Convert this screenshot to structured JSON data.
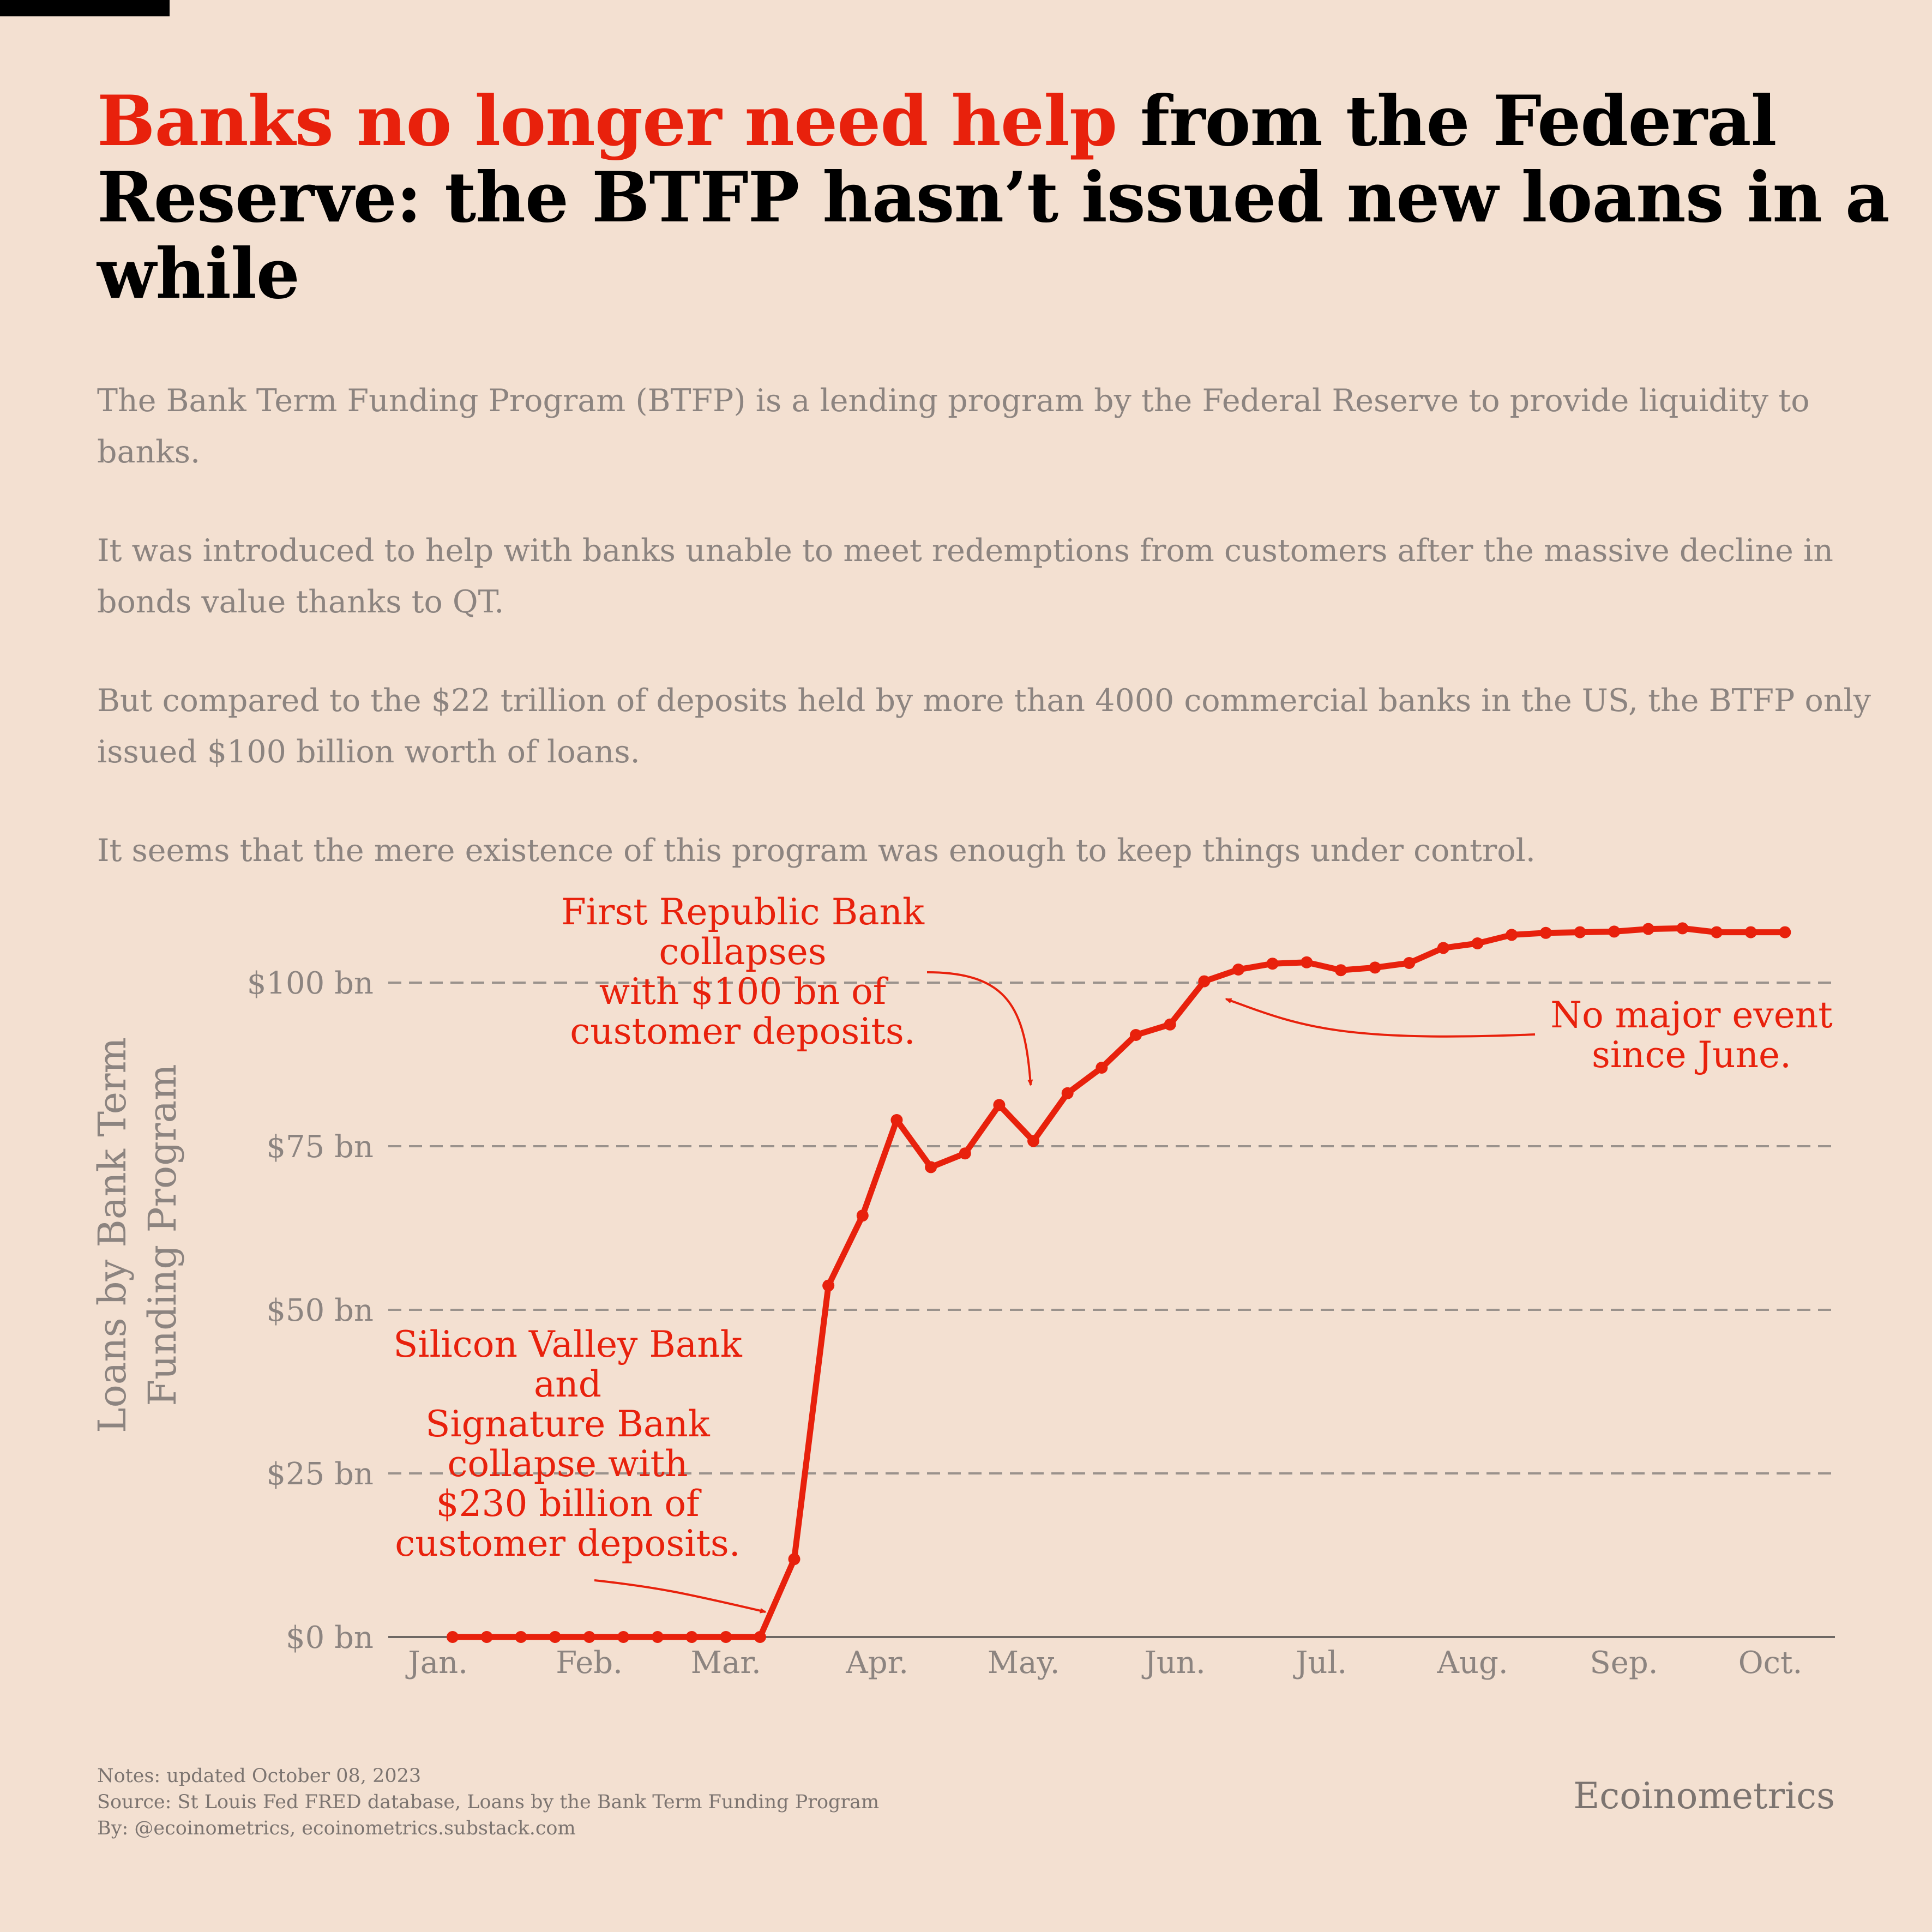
{
  "header": {
    "title_accent": "Banks no longer need help",
    "title_rest": " from the Federal Reserve: the BTFP hasn’t issued new loans in a while",
    "paragraphs": [
      "The Bank Term Funding Program (BTFP) is a lending program by the Federal Reserve to provide liquidity to banks.",
      "It was introduced to help with banks unable to meet redemptions from customers after the massive decline in bonds value thanks to QT.",
      "But compared to the $22 trillion of deposits held by more than 4000 commercial banks in the US, the BTFP only issued $100 billion worth of loans.",
      "It seems that the mere existence of this program was enough to keep things under control."
    ]
  },
  "chart_data": {
    "type": "line",
    "ylabel": "Loans by Bank Term Funding Program",
    "ylim": [
      0,
      110
    ],
    "yticks": [
      0,
      25,
      50,
      75,
      100
    ],
    "ytick_labels": [
      "$0 bn",
      "$25 bn",
      "$50 bn",
      "$75 bn",
      "$100 bn"
    ],
    "xtick_labels": [
      "Jan.",
      "Feb.",
      "Mar.",
      "Apr.",
      "May.",
      "Jun.",
      "Jul.",
      "Aug.",
      "Sep.",
      "Oct."
    ],
    "grid": "horizontal dashed",
    "color": "#e8210c",
    "series": [
      {
        "x": [
          "2023-01-04",
          "2023-01-11",
          "2023-01-18",
          "2023-01-25",
          "2023-02-01",
          "2023-02-08",
          "2023-02-15",
          "2023-02-22",
          "2023-03-01",
          "2023-03-08",
          "2023-03-15",
          "2023-03-22",
          "2023-03-29",
          "2023-04-05",
          "2023-04-12",
          "2023-04-19",
          "2023-04-26",
          "2023-05-03",
          "2023-05-10",
          "2023-05-17",
          "2023-05-24",
          "2023-05-31",
          "2023-06-07",
          "2023-06-14",
          "2023-06-21",
          "2023-06-28",
          "2023-07-05",
          "2023-07-12",
          "2023-07-19",
          "2023-07-26",
          "2023-08-02",
          "2023-08-09",
          "2023-08-16",
          "2023-08-23",
          "2023-08-30",
          "2023-09-06",
          "2023-09-13",
          "2023-09-20",
          "2023-09-27",
          "2023-10-04"
        ],
        "values": [
          0,
          0,
          0,
          0,
          0,
          0,
          0,
          0,
          0,
          0,
          11.9,
          53.7,
          64.4,
          79.0,
          71.8,
          73.9,
          81.3,
          75.8,
          83.1,
          87.0,
          92.0,
          93.6,
          100.2,
          102.0,
          102.9,
          103.1,
          101.9,
          102.3,
          103.0,
          105.3,
          106.0,
          107.3,
          107.6,
          107.7,
          107.8,
          108.2,
          108.3,
          107.7,
          107.7,
          107.7
        ]
      }
    ],
    "annotations": [
      {
        "text": [
          "First Republic Bank",
          "collapses",
          "with $100 bn of",
          "customer deposits."
        ],
        "target": {
          "x": "2023-05-03",
          "y": 76
        }
      },
      {
        "text": [
          "No major event",
          "since June."
        ],
        "target": {
          "x": "2023-06-07",
          "y": 100
        }
      },
      {
        "text": [
          "Silicon Valley Bank",
          "and",
          "Signature Bank",
          "collapse with",
          "$230 billion of",
          "customer deposits."
        ],
        "target": {
          "x": "2023-03-08",
          "y": 3
        }
      }
    ]
  },
  "footer": {
    "notes": "Notes: updated October 08, 2023",
    "source": "Source: St Louis Fed FRED database, Loans by the Bank Term Funding Program",
    "by": "By: @ecoinometrics, ecoinometrics.substack.com",
    "brand": "Ecoinometrics"
  }
}
